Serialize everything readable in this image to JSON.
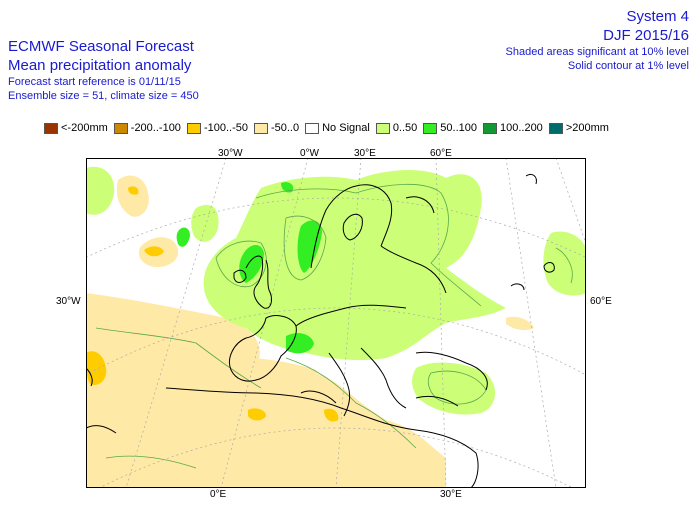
{
  "header": {
    "title": "ECMWF Seasonal Forecast",
    "subtitle": "Mean precipitation anomaly",
    "forecast_start": "Forecast start reference is 01/11/15",
    "ensemble": "Ensemble size = 51, climate size = 450",
    "system": "System 4",
    "season": "DJF 2015/16",
    "sig10": "Shaded areas significant at 10% level",
    "sig1": "Solid contour at 1% level"
  },
  "legend": [
    {
      "label": "<-200mm",
      "color": "#993300"
    },
    {
      "label": "-200..-100",
      "color": "#cc8800"
    },
    {
      "label": "-100..-50",
      "color": "#ffcc00"
    },
    {
      "label": "-50..0",
      "color": "#ffe9a6"
    },
    {
      "label": "No Signal",
      "color": "#ffffff"
    },
    {
      "label": "0..50",
      "color": "#ccff77"
    },
    {
      "label": "50..100",
      "color": "#33ee22"
    },
    {
      "label": "100..200",
      "color": "#119933"
    },
    {
      "label": ">200mm",
      "color": "#006b6b"
    }
  ],
  "map_labels": {
    "lon_top_30w": "30°W",
    "lon_top_0w": "0°W",
    "lon_top_30e": "30°E",
    "lon_top_60e": "60°E",
    "lat_left_30w": "30°W",
    "lat_right_60e": "60°E",
    "lon_bot_0e": "0°E",
    "lon_bot_30e": "30°E"
  }
}
